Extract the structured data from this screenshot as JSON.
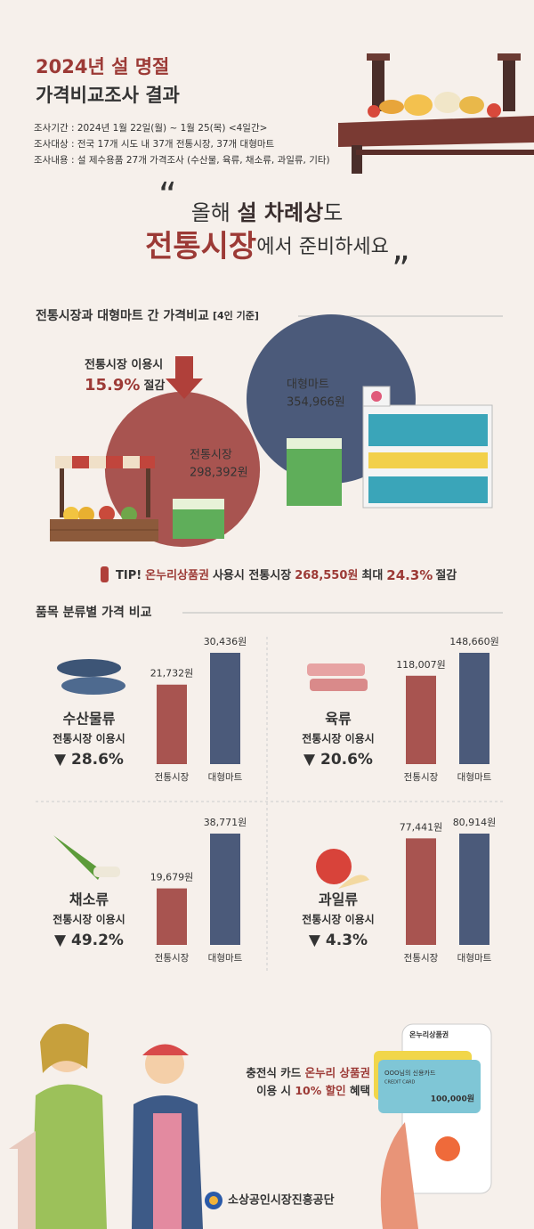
{
  "header": {
    "title_line1": "2024년 설 명절",
    "title_line2": "가격비교조사 결과",
    "info": [
      "조사기간 : 2024년 1월 22일(월) ~ 1월 25(목) <4일간>",
      "조사대상 : 전국 17개 시도 내 37개 전통시장, 37개 대형마트",
      "조사내용 : 설 제수용품 27개 가격조사 (수산물, 육류, 채소류, 과일류, 기타)"
    ]
  },
  "headline": {
    "line1": [
      "올해 ",
      "설 차례상",
      "도"
    ],
    "line2": [
      "전통시장",
      "에서 준비하세요"
    ]
  },
  "price_comparison": {
    "title": "전통시장과 대형마트 간 가격비교",
    "note": "[4인 기준]",
    "savings_label": "전통시장 이용시",
    "savings_rate": "15.9%",
    "savings_word": "절감",
    "markets": [
      {
        "name": "대형마트",
        "value": 354966,
        "value_label": "354,966원",
        "color": "#4b5a7a"
      },
      {
        "name": "전통시장",
        "value": 298392,
        "value_label": "298,392원",
        "color": "#a85450"
      }
    ],
    "tip": [
      "TIP!",
      "온누리상품권",
      "사용시 전통시장",
      "268,550원",
      "최대",
      "24.3%",
      "절감"
    ]
  },
  "category_comparison": {
    "title": "품목 분류별 가격 비교",
    "categories": [
      "전통시장",
      "대형마트"
    ],
    "colors": [
      "#a85450",
      "#4b5a7a"
    ],
    "items": [
      {
        "name": "수산물류",
        "savings_label": "전통시장 이용시",
        "savings_rate": "▼ 28.6%",
        "values": [
          21732,
          30436
        ],
        "value_labels": [
          "21,732원",
          "30,436원"
        ]
      },
      {
        "name": "육류",
        "savings_label": "전통시장 이용시",
        "savings_rate": "▼ 20.6%",
        "values": [
          118007,
          148660
        ],
        "value_labels": [
          "118,007원",
          "148,660원"
        ]
      },
      {
        "name": "채소류",
        "savings_label": "전통시장 이용시",
        "savings_rate": "▼ 49.2%",
        "values": [
          19679,
          38771
        ],
        "value_labels": [
          "19,679원",
          "38,771원"
        ]
      },
      {
        "name": "과일류",
        "savings_label": "전통시장 이용시",
        "savings_rate": "▼ 4.3%",
        "values": [
          77441,
          80914
        ],
        "value_labels": [
          "77,441원",
          "80,914원"
        ]
      }
    ]
  },
  "promo": {
    "line1": [
      "충전식 카드 ",
      "온누리 상품권"
    ],
    "line2": [
      "이용 시 ",
      "10% 할인",
      " 혜택"
    ],
    "app_title": "온누리상품권",
    "card_name": "OOO님의 신용카드",
    "card_type": "CREDIT CARD",
    "card_amount": "100,000원"
  },
  "footer": {
    "org": "소상공인시장진흥공단"
  }
}
